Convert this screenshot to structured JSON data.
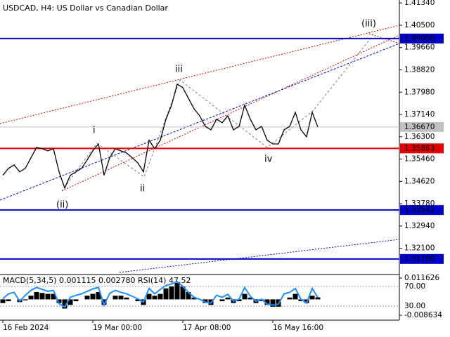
{
  "chart_data": [
    {
      "type": "line",
      "title": "USDCAD, H4:  US Dollar vs Canadian Dollar",
      "color": "#000000",
      "categories": [
        "16 Feb 2024",
        null,
        null,
        null,
        null,
        null,
        null,
        null,
        null,
        null,
        null,
        null,
        null,
        null,
        null,
        null,
        "19 Mar 00:00",
        null,
        null,
        null,
        null,
        null,
        null,
        null,
        null,
        null,
        null,
        null,
        null,
        null,
        null,
        null,
        "17 Apr 08:00",
        null,
        null,
        null,
        null,
        null,
        null,
        null,
        null,
        null,
        null,
        null,
        null,
        null,
        null,
        null,
        "16 May 16:00",
        null,
        null,
        null,
        null,
        null,
        null,
        null,
        null
      ],
      "values": [
        1.3485,
        1.3511,
        1.3524,
        1.3498,
        1.3511,
        1.3551,
        1.359,
        1.3585,
        1.3577,
        1.3585,
        1.3498,
        1.3437,
        1.3485,
        1.3498,
        1.3511,
        1.3543,
        1.3577,
        1.3603,
        1.3485,
        1.3551,
        1.3585,
        1.3577,
        1.3569,
        1.3551,
        1.3532,
        1.3498,
        1.3617,
        1.3585,
        1.3617,
        1.3696,
        1.3749,
        1.3828,
        1.3815,
        1.3775,
        1.3735,
        1.3709,
        1.3669,
        1.3656,
        1.3696,
        1.3683,
        1.3709,
        1.3656,
        1.3669,
        1.3749,
        1.3696,
        1.3656,
        1.3669,
        1.3617,
        1.3603,
        1.3603,
        1.3656,
        1.3669,
        1.3722,
        1.3656,
        1.363,
        1.3722,
        1.3667
      ],
      "ylim": [
        1.3114,
        1.4145
      ],
      "yticks": [
        {
          "value": 1.4134,
          "label": "1.41340"
        },
        {
          "value": 1.405,
          "label": "1.40500"
        },
        {
          "value": 1.3966,
          "label": "1.39660"
        },
        {
          "value": 1.3882,
          "label": "1.38820"
        },
        {
          "value": 1.3798,
          "label": "1.37980"
        },
        {
          "value": 1.3714,
          "label": "1.37140"
        },
        {
          "value": 1.363,
          "label": "1.36300"
        },
        {
          "value": 1.3546,
          "label": "1.35460"
        },
        {
          "value": 1.3462,
          "label": "1.34620"
        },
        {
          "value": 1.3378,
          "label": "1.33780"
        },
        {
          "value": 1.3294,
          "label": "1.32940"
        },
        {
          "value": 1.321,
          "label": "1.32100"
        }
      ],
      "levels": [
        {
          "value": 1.4,
          "label": "1.40000",
          "color": "#0000c8"
        },
        {
          "value": 1.3667,
          "label": "1.36670",
          "color": "#c0c0c0"
        },
        {
          "value": 1.35863,
          "label": "1.35863",
          "color": "#e00000"
        },
        {
          "value": 1.33542,
          "label": "1.33542",
          "color": "#0000c8"
        },
        {
          "value": 1.317,
          "label": "1.31700",
          "color": "#0000c8"
        }
      ],
      "annotations": [
        {
          "text": "(iii)",
          "color": "#d00000"
        },
        {
          "text": "iii",
          "color": "#555555"
        },
        {
          "text": "i",
          "color": "#555555"
        },
        {
          "text": "ii",
          "color": "#555555"
        },
        {
          "text": "(ii)",
          "color": "#d00000"
        },
        {
          "text": "iv",
          "color": "#555555"
        }
      ]
    },
    {
      "type": "bar",
      "title": "MACD(5,34,5) 0.001115 0.002780 RSI(14) 47.52",
      "ylim": [
        -0.01093,
        0.01277
      ],
      "yticks": [
        0.011626,
        -0.008634
      ],
      "y2lim": [
        2.9,
        91.4
      ],
      "y2ticks": [
        {
          "value": 70,
          "label": "70.00"
        },
        {
          "value": 30,
          "label": "30.00"
        }
      ],
      "series": [
        {
          "name": "MACD",
          "color": "#000000",
          "values": [
            -0.002,
            -0.001,
            0,
            -0.0015,
            -0.0005,
            0.002,
            0.004,
            0.0035,
            0.003,
            0.003,
            -0.002,
            -0.005,
            -0.003,
            -0.001,
            0,
            0.002,
            0.003,
            0.004,
            -0.003,
            0,
            0.002,
            0.002,
            0.001,
            0,
            -0.001,
            -0.003,
            0.003,
            0.002,
            0.003,
            0.006,
            0.007,
            0.009,
            0.007,
            0.004,
            0.001,
            0,
            -0.002,
            -0.003,
            0,
            -0.001,
            0.001,
            -0.002,
            -0.001,
            0.003,
            0.001,
            -0.002,
            -0.001,
            -0.003,
            -0.004,
            -0.004,
            0,
            0.001,
            0.003,
            -0.001,
            -0.002,
            0.002,
            0.001115
          ]
        },
        {
          "name": "RSI",
          "color": "#1e90ff",
          "axis": "y2",
          "values": [
            45,
            55,
            58,
            40,
            52,
            62,
            68,
            64,
            60,
            62,
            35,
            28,
            48,
            52,
            55,
            60,
            65,
            68,
            32,
            56,
            62,
            58,
            55,
            50,
            45,
            38,
            66,
            55,
            64,
            72,
            75,
            80,
            70,
            58,
            48,
            44,
            38,
            36,
            52,
            48,
            54,
            40,
            44,
            68,
            50,
            40,
            44,
            34,
            32,
            34,
            55,
            58,
            66,
            44,
            36,
            66,
            47.52
          ]
        }
      ]
    }
  ]
}
